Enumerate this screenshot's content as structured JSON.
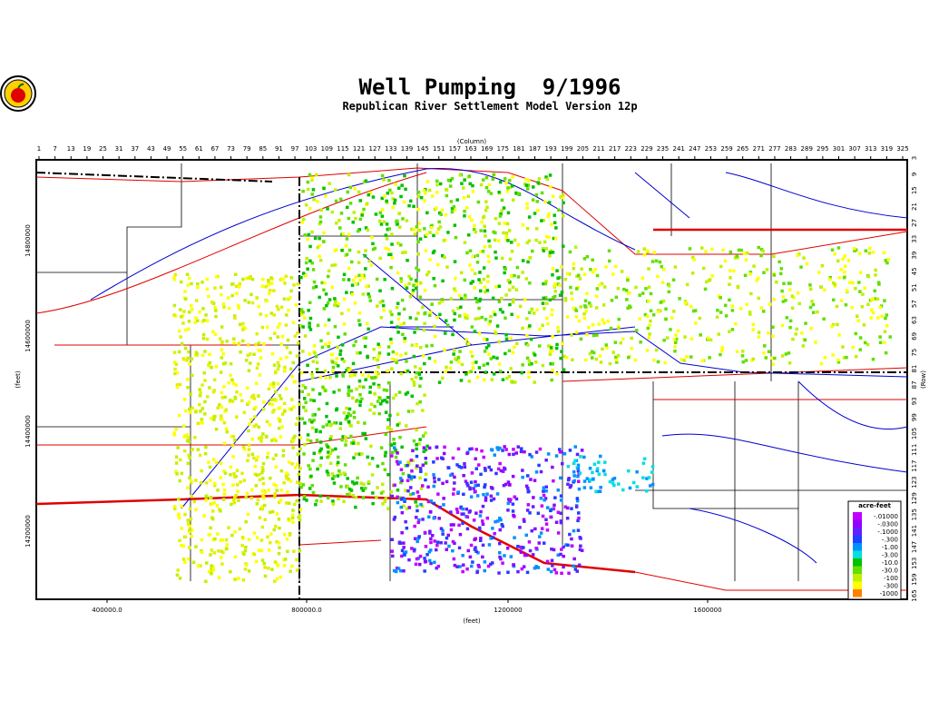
{
  "title": "Well Pumping  9/1996",
  "subtitle": "Republican River Settlement Model Version 12p",
  "column_axis": {
    "label": "(Column)",
    "ticks": [
      "1",
      "7",
      "13",
      "19",
      "25",
      "31",
      "37",
      "43",
      "49",
      "55",
      "61",
      "67",
      "73",
      "79",
      "85",
      "91",
      "97",
      "103",
      "109",
      "115",
      "121",
      "127",
      "133",
      "139",
      "145",
      "151",
      "157",
      "163",
      "169",
      "175",
      "181",
      "187",
      "193",
      "199",
      "205",
      "211",
      "217",
      "223",
      "229",
      "235",
      "241",
      "247",
      "253",
      "259",
      "265",
      "271",
      "277",
      "283",
      "289",
      "295",
      "301",
      "307",
      "313",
      "319",
      "325"
    ]
  },
  "row_axis": {
    "label": "(Row)",
    "ticks": [
      "3",
      "9",
      "15",
      "21",
      "27",
      "33",
      "39",
      "45",
      "51",
      "57",
      "63",
      "69",
      "75",
      "81",
      "87",
      "93",
      "99",
      "105",
      "111",
      "117",
      "123",
      "129",
      "135",
      "141",
      "147",
      "153",
      "159",
      "165"
    ]
  },
  "x_axis": {
    "label": "(feet)",
    "ticks": [
      "400000.0",
      "800000.0",
      "1200000",
      "1600000"
    ]
  },
  "y_axis": {
    "label": "(feet)",
    "ticks": [
      "14800000",
      "14600000",
      "14400000",
      "14200000"
    ]
  },
  "legend": {
    "title": "acre-feet",
    "entries": [
      {
        "label": "-.01000",
        "color": "#c000ff"
      },
      {
        "label": "-.0300",
        "color": "#9000ff"
      },
      {
        "label": "-.1000",
        "color": "#6020ff"
      },
      {
        "label": "-.300",
        "color": "#2040ff"
      },
      {
        "label": "-1.00",
        "color": "#0090ff"
      },
      {
        "label": "-3.00",
        "color": "#00e0e0"
      },
      {
        "label": "-10.0",
        "color": "#00c000"
      },
      {
        "label": "-30.0",
        "color": "#60e000"
      },
      {
        "label": "-100",
        "color": "#c0f000"
      },
      {
        "label": "-300",
        "color": "#ffff00"
      },
      {
        "label": "-1000",
        "color": "#ff8000"
      }
    ]
  }
}
